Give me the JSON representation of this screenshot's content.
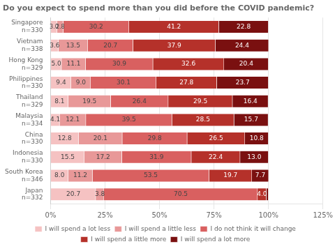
{
  "chart_data": {
    "type": "bar",
    "orientation": "horizontal",
    "stacked": true,
    "title": "Do you expect to spend more than you did before the COVID pandemic?",
    "categories": [
      "Singapore\nn=330",
      "Vietnam\nn=338",
      "Hong Kong\nn=329",
      "Philippines\nn=330",
      "Thailand\nn=329",
      "Malaysia\nn=334",
      "China\nn=330",
      "Indonesia\nn=330",
      "South Korea\nn=346",
      "Japan\nn=332"
    ],
    "series": [
      {
        "name": "I will spend a lot less",
        "color": "#f5c2c2",
        "values": [
          3.0,
          3.6,
          5.0,
          9.4,
          8.1,
          4.1,
          12.8,
          15.5,
          8.0,
          20.7
        ],
        "value_labels": [
          "3.0",
          "3.6",
          "5.0",
          "9.4",
          "8.1",
          "4.1",
          "12.8",
          "15.5",
          "8.0",
          "20.7"
        ]
      },
      {
        "name": "I will spend a little less",
        "color": "#e89898",
        "values": [
          2.8,
          13.5,
          11.1,
          9.0,
          19.5,
          12.1,
          20.1,
          17.2,
          11.2,
          3.8
        ],
        "value_labels": [
          "2.8",
          "13.5",
          "11.1",
          "9.0",
          "19.5",
          "12.1",
          "20.1",
          "17.2",
          "11.2",
          "3.8"
        ]
      },
      {
        "name": "I do not think it will change",
        "color": "#d96060",
        "values": [
          30.2,
          20.7,
          30.9,
          30.1,
          26.4,
          39.5,
          29.8,
          31.9,
          53.5,
          70.5
        ],
        "value_labels": [
          "30.2",
          "20.7",
          "30.9",
          "30.1",
          "26.4",
          "39.5",
          "29.8",
          "31.9",
          "53.5",
          "70.5"
        ]
      },
      {
        "name": "I will spend a little more",
        "color": "#b5312a",
        "values": [
          41.2,
          37.9,
          32.6,
          27.8,
          29.5,
          28.5,
          26.5,
          22.4,
          19.7,
          4.0
        ],
        "value_labels": [
          "41.2",
          "37.9",
          "32.6",
          "27.8",
          "29.5",
          "28.5",
          "26.5",
          "22.4",
          "19.7",
          "4.0"
        ]
      },
      {
        "name": "I will spend a lot more",
        "color": "#7a1010",
        "values": [
          22.8,
          24.4,
          20.4,
          23.7,
          16.4,
          15.7,
          10.8,
          13.0,
          7.7,
          1.0
        ],
        "value_labels": [
          "22.8",
          "24.4",
          "20.4",
          "23.7",
          "16.4",
          "15.7",
          "10.8",
          "13.0",
          "7.7",
          null
        ]
      }
    ],
    "xlim": [
      0,
      125
    ],
    "xticks": [
      {
        "value": 0,
        "label": "0%"
      },
      {
        "value": 25,
        "label": "25%"
      },
      {
        "value": 50,
        "label": "50%"
      },
      {
        "value": 75,
        "label": "75%"
      },
      {
        "value": 100,
        "label": "100%"
      },
      {
        "value": 125,
        "label": "125%"
      }
    ],
    "data_labels": true,
    "grid": true,
    "legend": "bottom"
  }
}
